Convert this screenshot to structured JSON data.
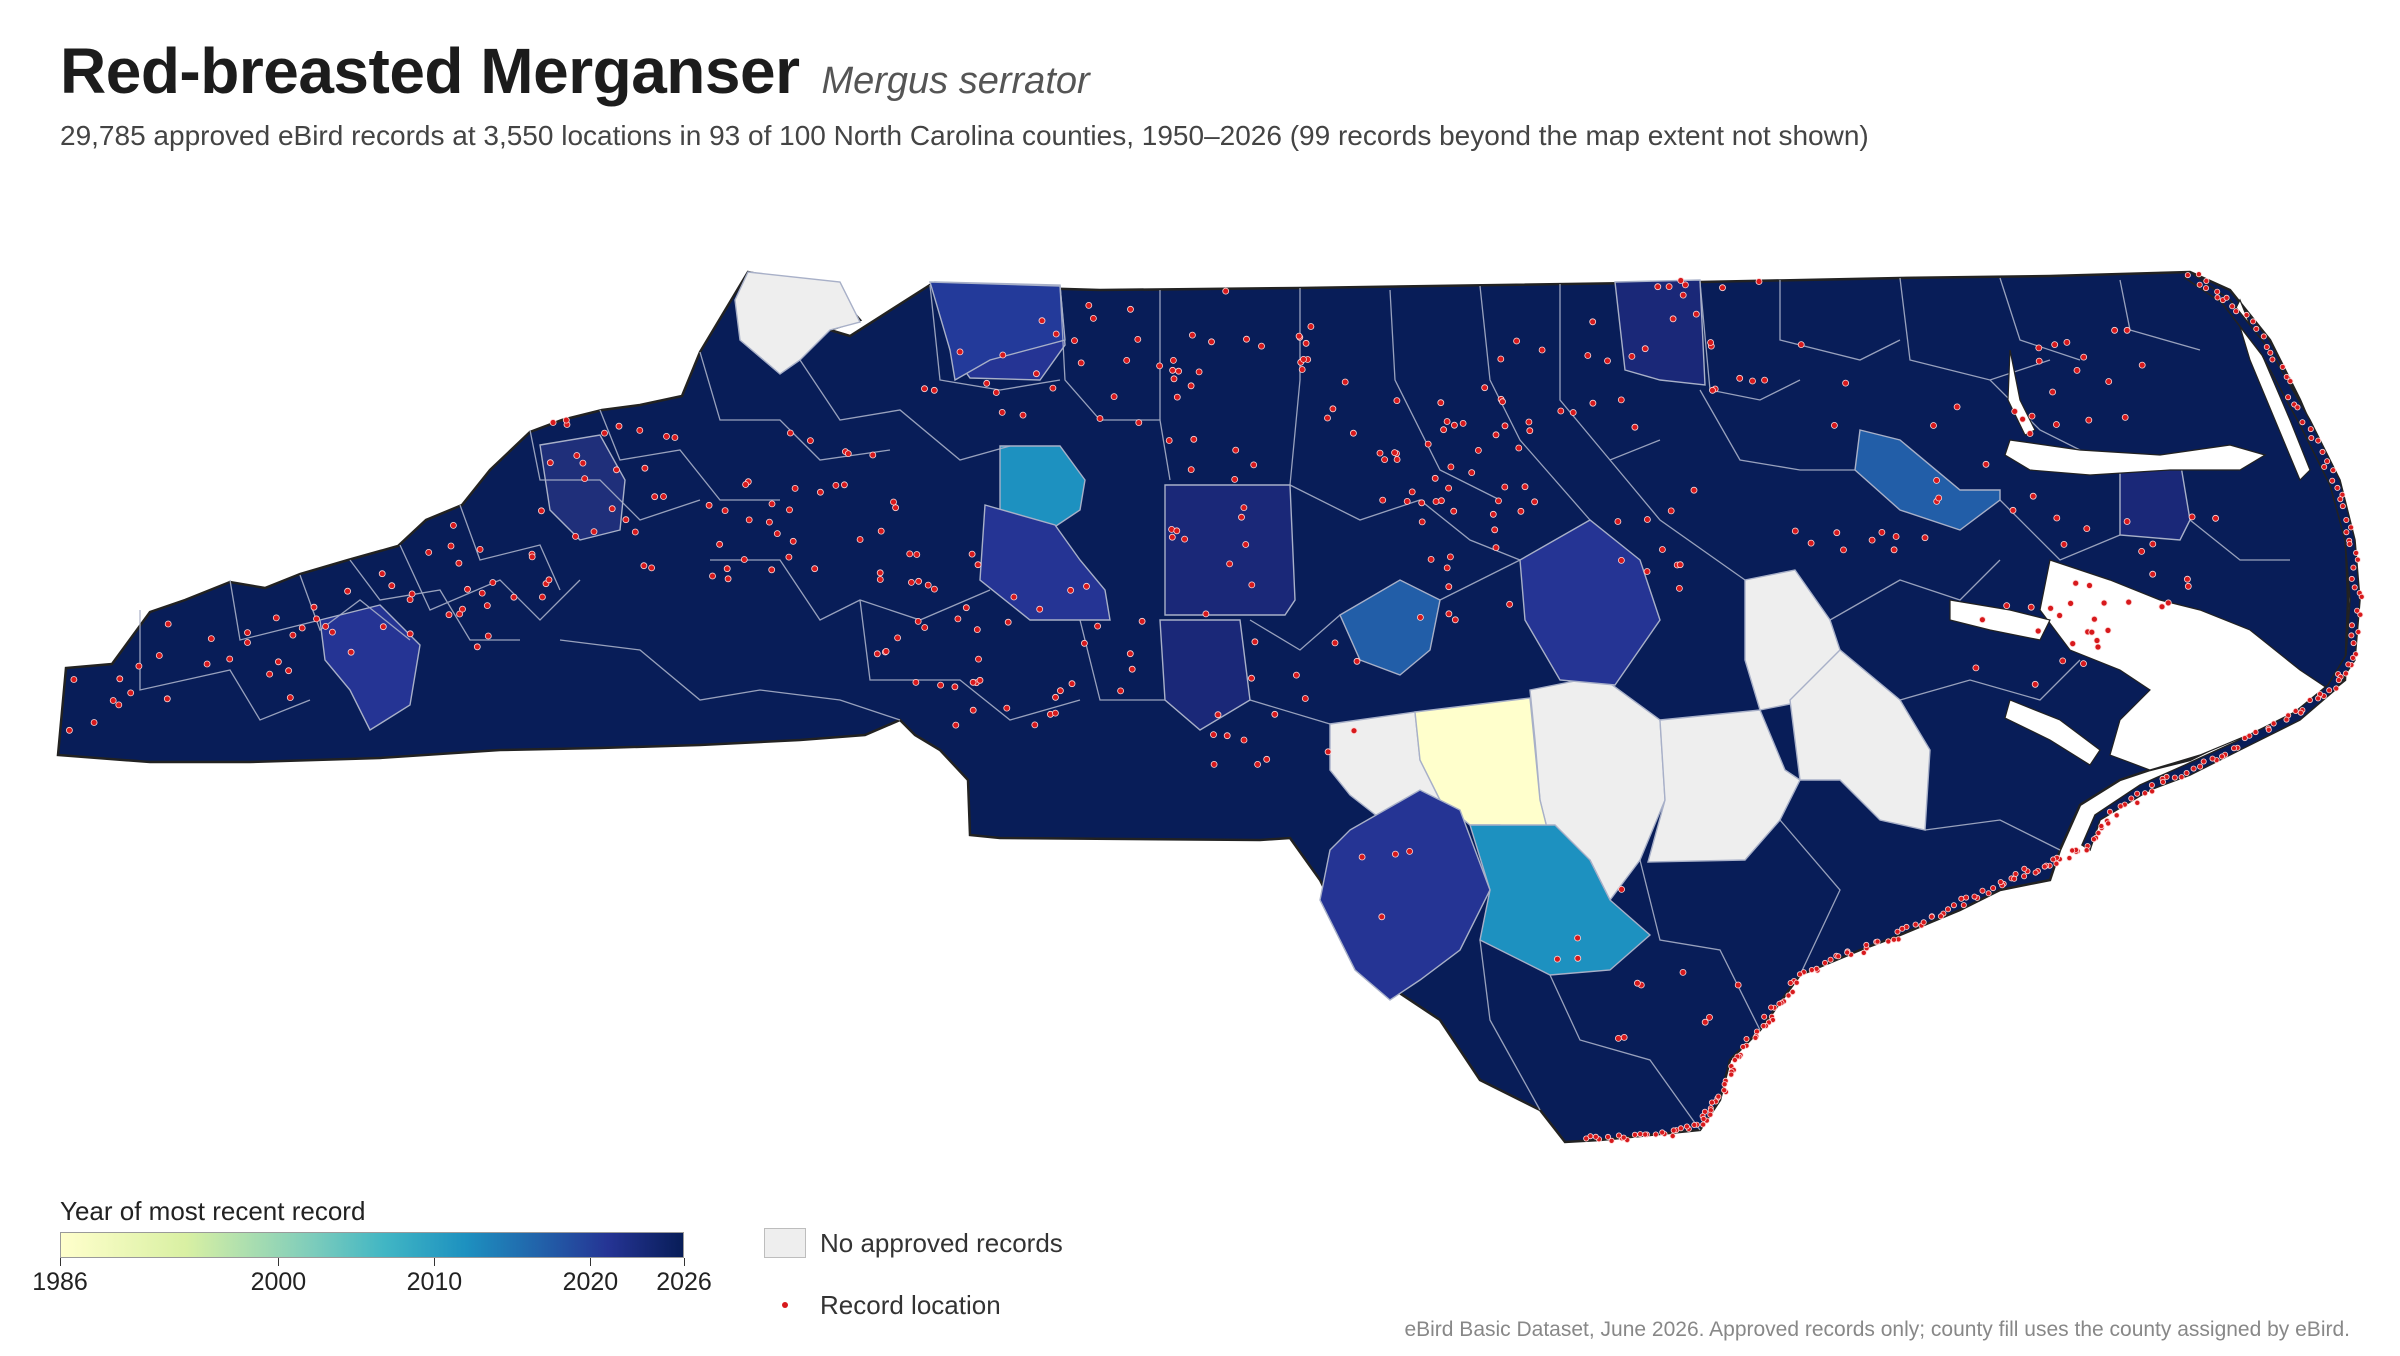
{
  "header": {
    "title": "Red-breasted Merganser",
    "scientific_name": "Mergus serrator",
    "subtitle": "29,785 approved eBird records at 3,550 locations in 93 of 100 North Carolina counties, 1950–2026 (99 records beyond the map extent not shown)"
  },
  "legend": {
    "colorbar_title": "Year of most recent record",
    "year_min": 1986,
    "year_max": 2026,
    "ticks": [
      "1986",
      "2000",
      "2010",
      "2020",
      "2026"
    ],
    "no_data_label": "No approved records",
    "record_label": "Record location"
  },
  "colors": {
    "no_data": "#eeeeee",
    "record_dot": "#d7191c",
    "county_border": "#a8b0c8",
    "state_border": "#222222",
    "ramp": [
      "#ffffcc",
      "#d9f0a3",
      "#7fcdbb",
      "#41b6c4",
      "#1d91c0",
      "#225ea8",
      "#253494",
      "#081d58"
    ]
  },
  "source": "eBird Basic Dataset, June 2026. Approved records only; county fill uses the county assigned by eBird."
}
